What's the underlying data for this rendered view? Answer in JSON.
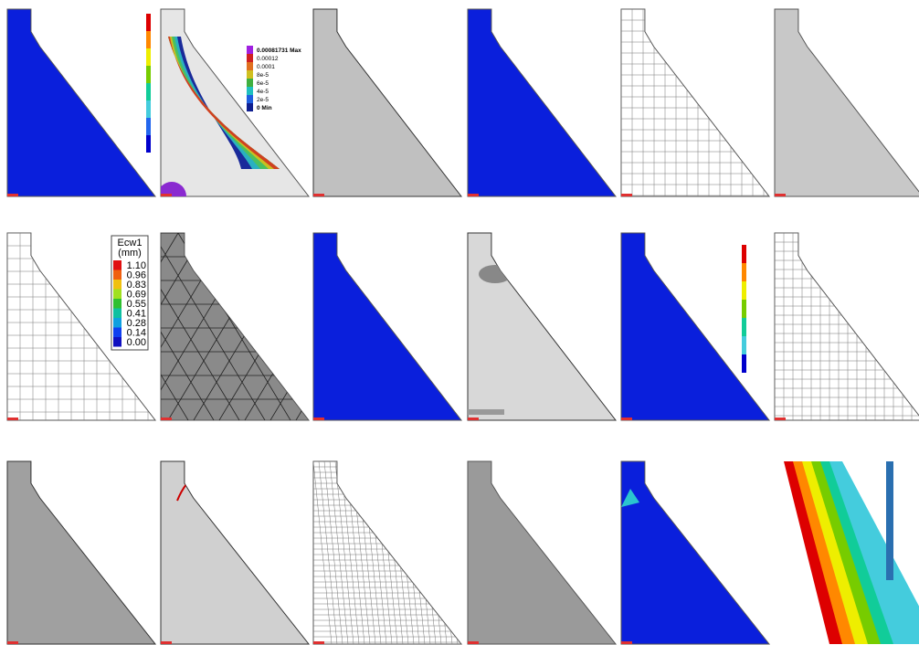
{
  "legends": [
    {
      "labels": [
        "0.00081731 Max",
        "0.00012",
        "0.0001",
        "8e-5",
        "6e-5",
        "4e-5",
        "2e-5",
        "0 Min"
      ]
    },
    {
      "title": "Ecw1",
      "unit": "(mm)",
      "labels": [
        "1.10",
        "0.96",
        "0.83",
        "0.69",
        "0.55",
        "0.41",
        "0.28",
        "0.14",
        "0.00"
      ]
    }
  ]
}
